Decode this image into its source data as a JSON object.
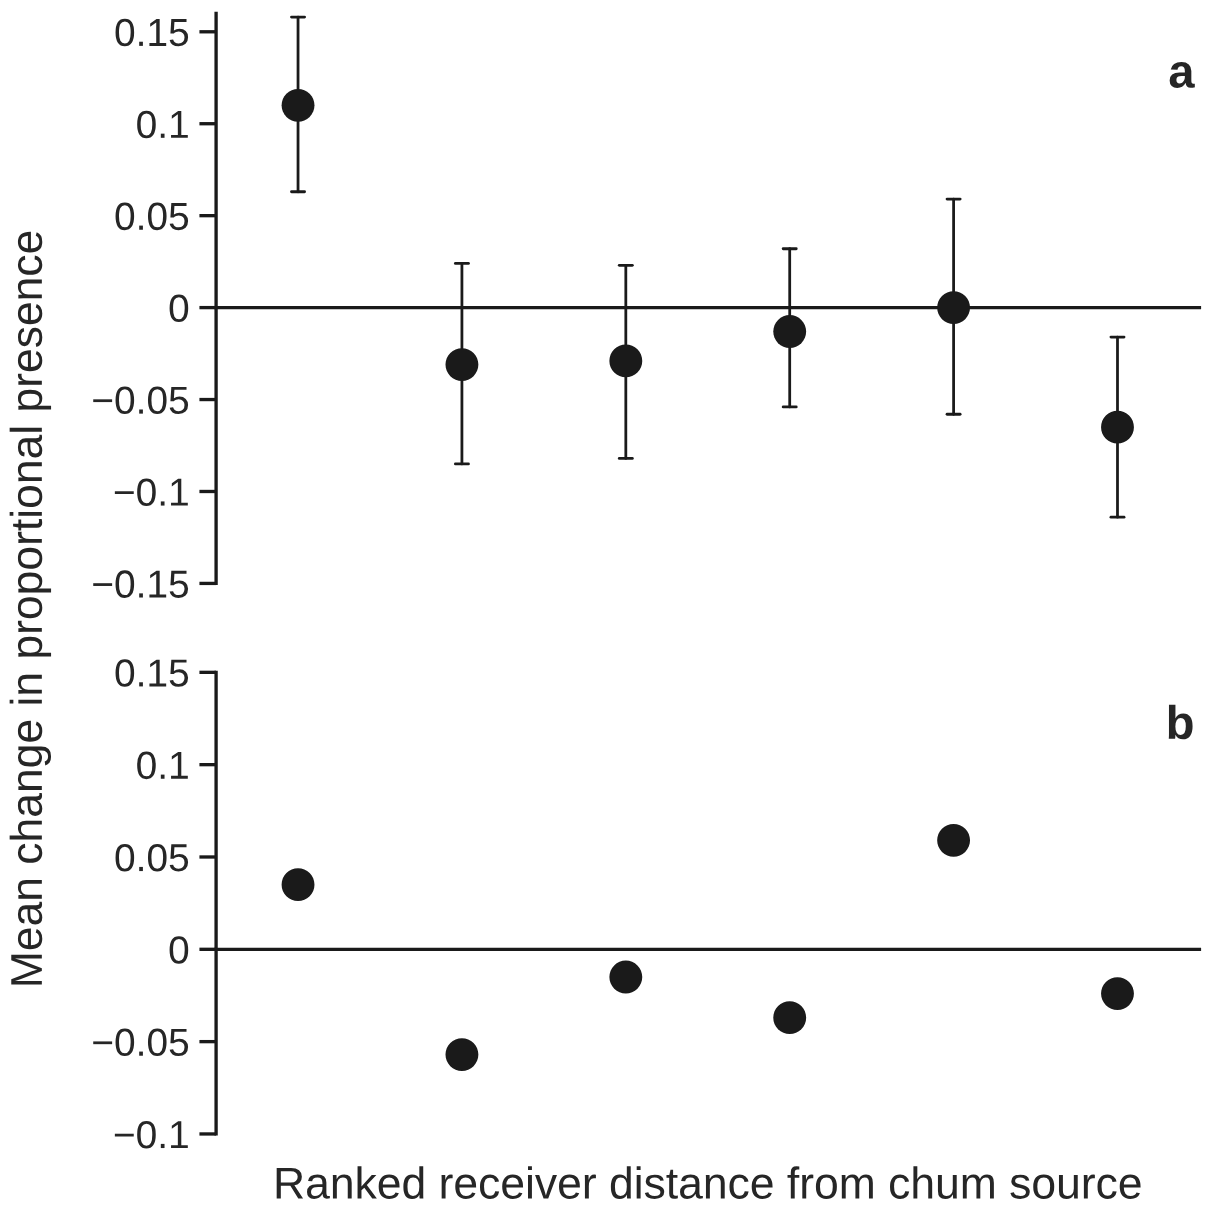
{
  "chart_data": [
    {
      "type": "scatter",
      "ylabel": "Mean change in proportional presence",
      "annotations": [
        "a"
      ],
      "categories": [
        null,
        null,
        null,
        null,
        null,
        null
      ],
      "series": [
        {
          "color": "#1a1a1a",
          "values": [
            0.11,
            -0.031,
            -0.029,
            -0.013,
            0.0,
            -0.065
          ],
          "errors": [
            [
              0.063,
              0.158
            ],
            [
              -0.085,
              0.024
            ],
            [
              -0.082,
              0.023
            ],
            [
              -0.054,
              0.032
            ],
            [
              -0.058,
              0.059
            ],
            [
              -0.114,
              -0.016
            ]
          ]
        }
      ],
      "ylim": [
        -0.15,
        0.16
      ],
      "yticks": [
        {
          "value": -0.15,
          "label": "−0.15"
        },
        {
          "value": -0.1,
          "label": "−0.1"
        },
        {
          "value": -0.05,
          "label": "−0.05"
        },
        0,
        0.05,
        0.1,
        0.15
      ],
      "marker": "circle"
    },
    {
      "type": "scatter",
      "xlabel": "Ranked receiver distance from chum source",
      "annotations": [
        "b"
      ],
      "categories": [
        null,
        null,
        null,
        null,
        null,
        null
      ],
      "series": [
        {
          "color": "#1a1a1a",
          "values": [
            0.035,
            -0.057,
            -0.015,
            -0.037,
            0.059,
            -0.024
          ]
        }
      ],
      "ylim": [
        -0.1,
        0.15
      ],
      "yticks": [
        {
          "value": -0.1,
          "label": "−0.1"
        },
        {
          "value": -0.05,
          "label": "−0.05"
        },
        0,
        0.05,
        0.1,
        0.15
      ],
      "marker": "circle"
    }
  ]
}
